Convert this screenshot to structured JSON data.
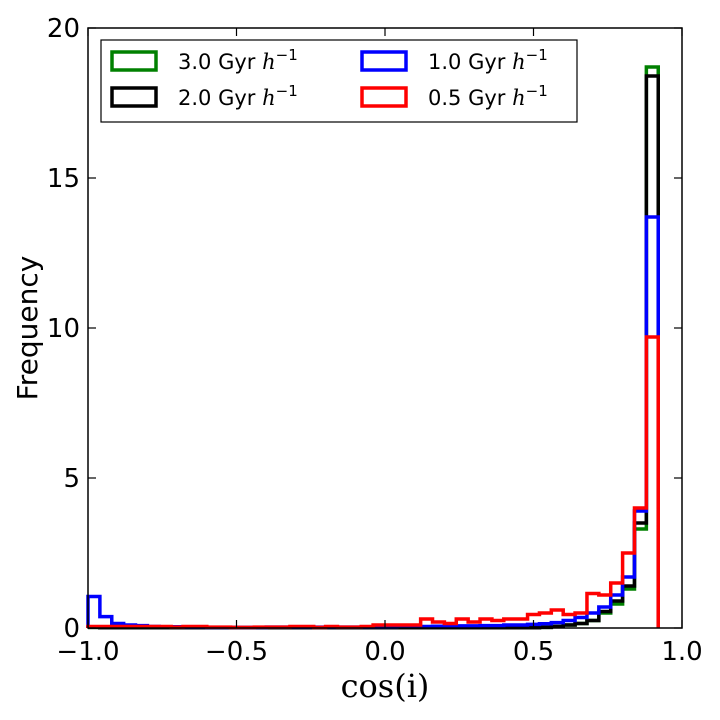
{
  "chart_data": {
    "type": "histogram",
    "title": "",
    "xlabel": "cos(i)",
    "ylabel": "Frequency",
    "xlim": [
      -1.0,
      1.0
    ],
    "ylim": [
      0,
      20
    ],
    "x_ticks": [
      -1.0,
      -0.5,
      0.0,
      0.5,
      1.0
    ],
    "x_tick_labels": [
      "−1.0",
      "−0.5",
      "0.0",
      "0.5",
      "1.0"
    ],
    "y_ticks": [
      0,
      5,
      10,
      15,
      20
    ],
    "y_tick_labels": [
      "0",
      "5",
      "10",
      "15",
      "20"
    ],
    "bin_width": 0.04,
    "bin_start": -1.0,
    "legend_position": "top-left",
    "grid": false,
    "series": [
      {
        "name": "3.0 Gyr",
        "unit": "h",
        "unit_exp": "−1",
        "color": "#008000",
        "values": [
          0.02,
          0.01,
          0.01,
          0.01,
          0.01,
          0.01,
          0.01,
          0.01,
          0.01,
          0.01,
          0.01,
          0.01,
          0.01,
          0.01,
          0.01,
          0.01,
          0.01,
          0.01,
          0.01,
          0.01,
          0.01,
          0.01,
          0.01,
          0.01,
          0.01,
          0.01,
          0.01,
          0.01,
          0.01,
          0.01,
          0.01,
          0.01,
          0.01,
          0.01,
          0.01,
          0.01,
          0.01,
          0.01,
          0.02,
          0.05,
          0.1,
          0.15,
          0.25,
          0.5,
          0.8,
          1.3,
          3.3,
          18.7
        ]
      },
      {
        "name": "2.0 Gyr",
        "unit": "h",
        "unit_exp": "−1",
        "color": "#000000",
        "values": [
          0.02,
          0.01,
          0.01,
          0.01,
          0.01,
          0.01,
          0.01,
          0.01,
          0.01,
          0.01,
          0.01,
          0.01,
          0.01,
          0.01,
          0.01,
          0.01,
          0.01,
          0.01,
          0.01,
          0.01,
          0.01,
          0.01,
          0.01,
          0.01,
          0.01,
          0.01,
          0.01,
          0.01,
          0.01,
          0.01,
          0.01,
          0.01,
          0.01,
          0.01,
          0.01,
          0.01,
          0.01,
          0.01,
          0.02,
          0.05,
          0.1,
          0.15,
          0.25,
          0.55,
          0.9,
          1.4,
          3.5,
          18.4
        ]
      },
      {
        "name": "1.0 Gyr",
        "unit": "h",
        "unit_exp": "−1",
        "color": "#0000ff",
        "values": [
          1.05,
          0.38,
          0.15,
          0.1,
          0.08,
          0.05,
          0.04,
          0.04,
          0.03,
          0.03,
          0.02,
          0.02,
          0.02,
          0.02,
          0.02,
          0.03,
          0.03,
          0.03,
          0.03,
          0.03,
          0.03,
          0.03,
          0.03,
          0.03,
          0.03,
          0.03,
          0.04,
          0.05,
          0.05,
          0.06,
          0.07,
          0.07,
          0.07,
          0.08,
          0.08,
          0.1,
          0.1,
          0.12,
          0.14,
          0.18,
          0.25,
          0.35,
          0.5,
          0.7,
          1.1,
          1.7,
          3.9,
          13.7
        ]
      },
      {
        "name": "0.5 Gyr",
        "unit": "h",
        "unit_exp": "−1",
        "color": "#ff0000",
        "values": [
          0.05,
          0.05,
          0.05,
          0.05,
          0.05,
          0.05,
          0.05,
          0.03,
          0.05,
          0.05,
          0.03,
          0.03,
          0.02,
          0.02,
          0.03,
          0.03,
          0.03,
          0.05,
          0.05,
          0.02,
          0.05,
          0.03,
          0.03,
          0.05,
          0.1,
          0.1,
          0.1,
          0.1,
          0.3,
          0.2,
          0.15,
          0.3,
          0.2,
          0.3,
          0.25,
          0.3,
          0.3,
          0.45,
          0.5,
          0.6,
          0.45,
          0.5,
          1.15,
          1.1,
          1.5,
          2.5,
          4.0,
          9.7
        ]
      }
    ]
  }
}
